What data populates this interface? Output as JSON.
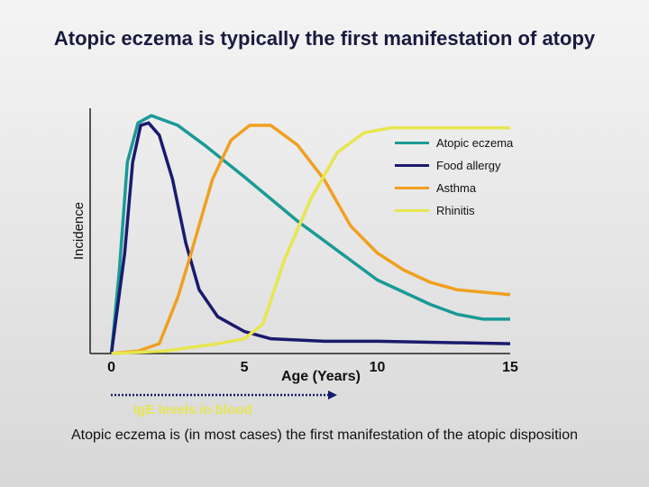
{
  "chart_data": {
    "type": "line",
    "title": "Atopic eczema is typically the first manifestation of atopy",
    "x_label": "Age (Years)",
    "y_label": "Incidence",
    "annotation": "IgE levels in blood",
    "footer": "Atopic eczema is (in most cases) the first manifestation of the atopic disposition",
    "xlim": [
      -0.8,
      15
    ],
    "xticks": [
      0,
      5,
      10,
      15
    ],
    "ylim": [
      0,
      100
    ],
    "series": [
      {
        "name": "Atopic eczema",
        "color": "#1a9a96",
        "x": [
          0,
          0.3,
          0.6,
          1.0,
          1.5,
          2.5,
          3.5,
          5,
          7,
          9,
          10,
          11,
          12,
          13,
          14,
          15
        ],
        "values": [
          0,
          34,
          78,
          94,
          97,
          93,
          85,
          72,
          54,
          38,
          30,
          25,
          20,
          16,
          14,
          14
        ]
      },
      {
        "name": "Food allergy",
        "color": "#1a1a6e",
        "x": [
          0,
          0.5,
          0.8,
          1.1,
          1.4,
          1.8,
          2.3,
          2.8,
          3.3,
          4,
          5,
          6,
          8,
          10,
          15
        ],
        "values": [
          0,
          41,
          78,
          93,
          94,
          89,
          71,
          45,
          26,
          15,
          9,
          6,
          5,
          5,
          4
        ]
      },
      {
        "name": "Asthma",
        "color": "#f0a020",
        "x": [
          0,
          1.0,
          1.8,
          2.5,
          3,
          3.8,
          4.5,
          5.2,
          6,
          7,
          8,
          9,
          10,
          11,
          12,
          13,
          14,
          15
        ],
        "values": [
          0,
          1,
          4,
          23,
          41,
          71,
          87,
          93,
          93,
          85,
          71,
          52,
          41,
          34,
          29,
          26,
          25,
          24
        ]
      },
      {
        "name": "Rhinitis",
        "color": "#e6e650",
        "x": [
          0,
          2,
          4,
          5,
          5.7,
          6.5,
          7.5,
          8.5,
          9.5,
          10.5,
          12,
          15
        ],
        "values": [
          0,
          1,
          4,
          6,
          12,
          38,
          63,
          82,
          90,
          92,
          92,
          92
        ]
      }
    ]
  }
}
